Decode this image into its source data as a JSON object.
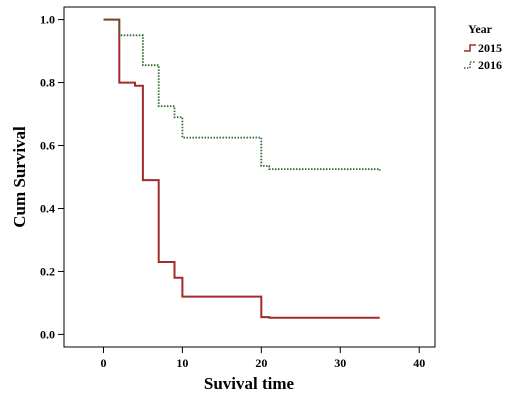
{
  "chart_data": {
    "type": "line",
    "subtype": "kaplan-meier step curve",
    "xlabel": "Suvival time",
    "ylabel": "Cum Survival",
    "xlim": [
      -5,
      42
    ],
    "ylim": [
      -0.04,
      1.04
    ],
    "xticks": [
      0,
      10,
      20,
      30,
      40
    ],
    "xtick_labels": [
      "0",
      "10",
      "20",
      "30",
      "40"
    ],
    "yticks": [
      0.0,
      0.2,
      0.4,
      0.6,
      0.8,
      1.0
    ],
    "ytick_labels": [
      "0.0",
      "0.2",
      "0.4",
      "0.6",
      "0.8",
      "1.0"
    ],
    "grid": false,
    "legend": {
      "title": "Year",
      "position": "top-right, outside plot"
    },
    "series": [
      {
        "name": "2015",
        "color": "#a52a2a",
        "line_style": "solid",
        "x": [
          0,
          2,
          4,
          5,
          7,
          9,
          10,
          20,
          21,
          35
        ],
        "y": [
          1.0,
          0.8,
          0.79,
          0.49,
          0.23,
          0.18,
          0.12,
          0.055,
          0.053,
          0.053
        ]
      },
      {
        "name": "2016",
        "color": "#2e6b2e",
        "line_style": "dotted",
        "x": [
          0,
          2,
          5,
          7,
          9,
          10,
          20,
          21,
          35
        ],
        "y": [
          1.0,
          0.95,
          0.855,
          0.725,
          0.69,
          0.625,
          0.535,
          0.525,
          0.52
        ]
      }
    ]
  }
}
